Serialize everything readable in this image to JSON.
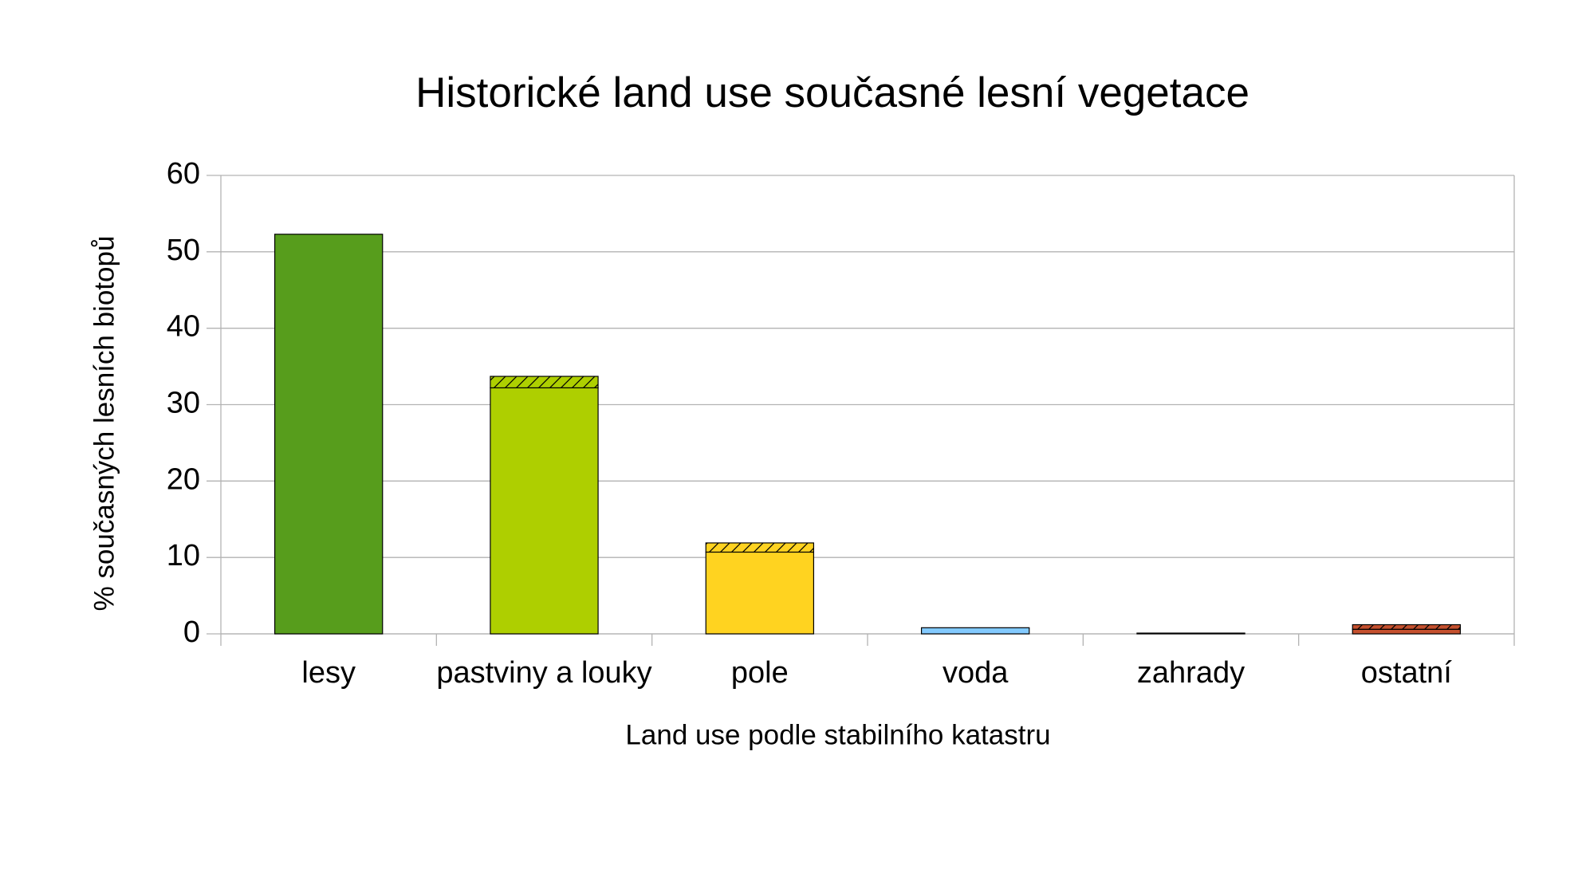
{
  "chart_data": {
    "type": "bar",
    "stacked": true,
    "title": "Historické land use současné lesní vegetace",
    "x_label": "Land use podle stabilního katastru",
    "y_label": "% současných lesních biotopů",
    "categories": [
      "lesy",
      "pastviny a louky",
      "pole",
      "voda",
      "zahrady",
      "ostatní"
    ],
    "colors": [
      "#579d1c",
      "#aecf00",
      "#ffd320",
      "#83caff",
      "#314004",
      "#c5502e"
    ],
    "series": [
      {
        "values": [
          52.3,
          32.2,
          10.7,
          0.8,
          0.1,
          0.6
        ]
      },
      {
        "values": [
          0,
          1.5,
          1.2,
          0,
          0,
          0.6
        ],
        "pattern": "hatch"
      }
    ],
    "ylim": [
      0,
      60
    ],
    "yticks": [
      0,
      10,
      20,
      30,
      40,
      50,
      60
    ],
    "grid": true
  }
}
